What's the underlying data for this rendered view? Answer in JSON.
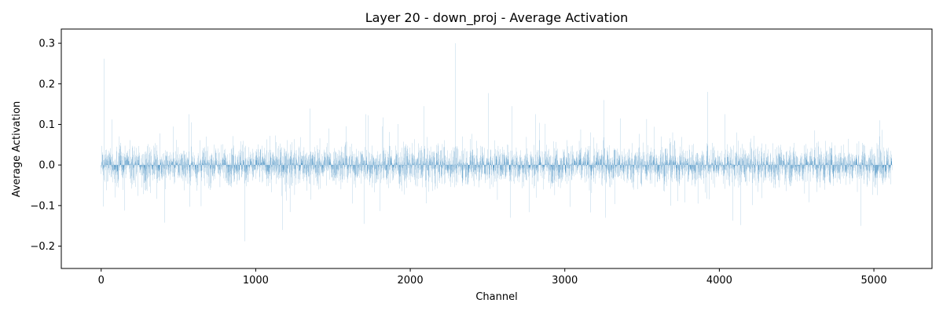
{
  "chart_data": {
    "type": "bar",
    "title": "Layer 20 - down_proj - Average Activation",
    "xlabel": "Channel",
    "ylabel": "Average Activation",
    "xlim": [
      -258,
      5376
    ],
    "ylim": [
      -0.255,
      0.335
    ],
    "xticks": [
      0,
      1000,
      2000,
      3000,
      4000,
      5000
    ],
    "xtick_labels": [
      "0",
      "1000",
      "2000",
      "3000",
      "4000",
      "5000"
    ],
    "yticks": [
      -0.2,
      -0.1,
      0.0,
      0.1,
      0.2,
      0.3
    ],
    "ytick_labels": [
      "−0.2",
      "−0.1",
      "0.0",
      "0.1",
      "0.2",
      "0.3"
    ],
    "n_channels": 5120,
    "bar_color": "#1f77b4",
    "grid": false,
    "series": [
      {
        "x": [
          20,
          68,
          90,
          380,
          412,
          585,
          930,
          1175,
          1350,
          1475,
          1700,
          1820,
          2090,
          2290,
          2505,
          2660,
          3255,
          3530,
          3925,
          4085,
          4140,
          4915,
          5040
        ],
        "values": [
          0.262,
          0.112,
          -0.08,
          0.078,
          -0.142,
          0.105,
          -0.188,
          -0.16,
          0.139,
          0.09,
          -0.145,
          0.095,
          0.145,
          0.3,
          0.177,
          0.145,
          0.16,
          0.113,
          0.18,
          -0.137,
          -0.148,
          -0.15,
          0.11
        ]
      }
    ]
  }
}
